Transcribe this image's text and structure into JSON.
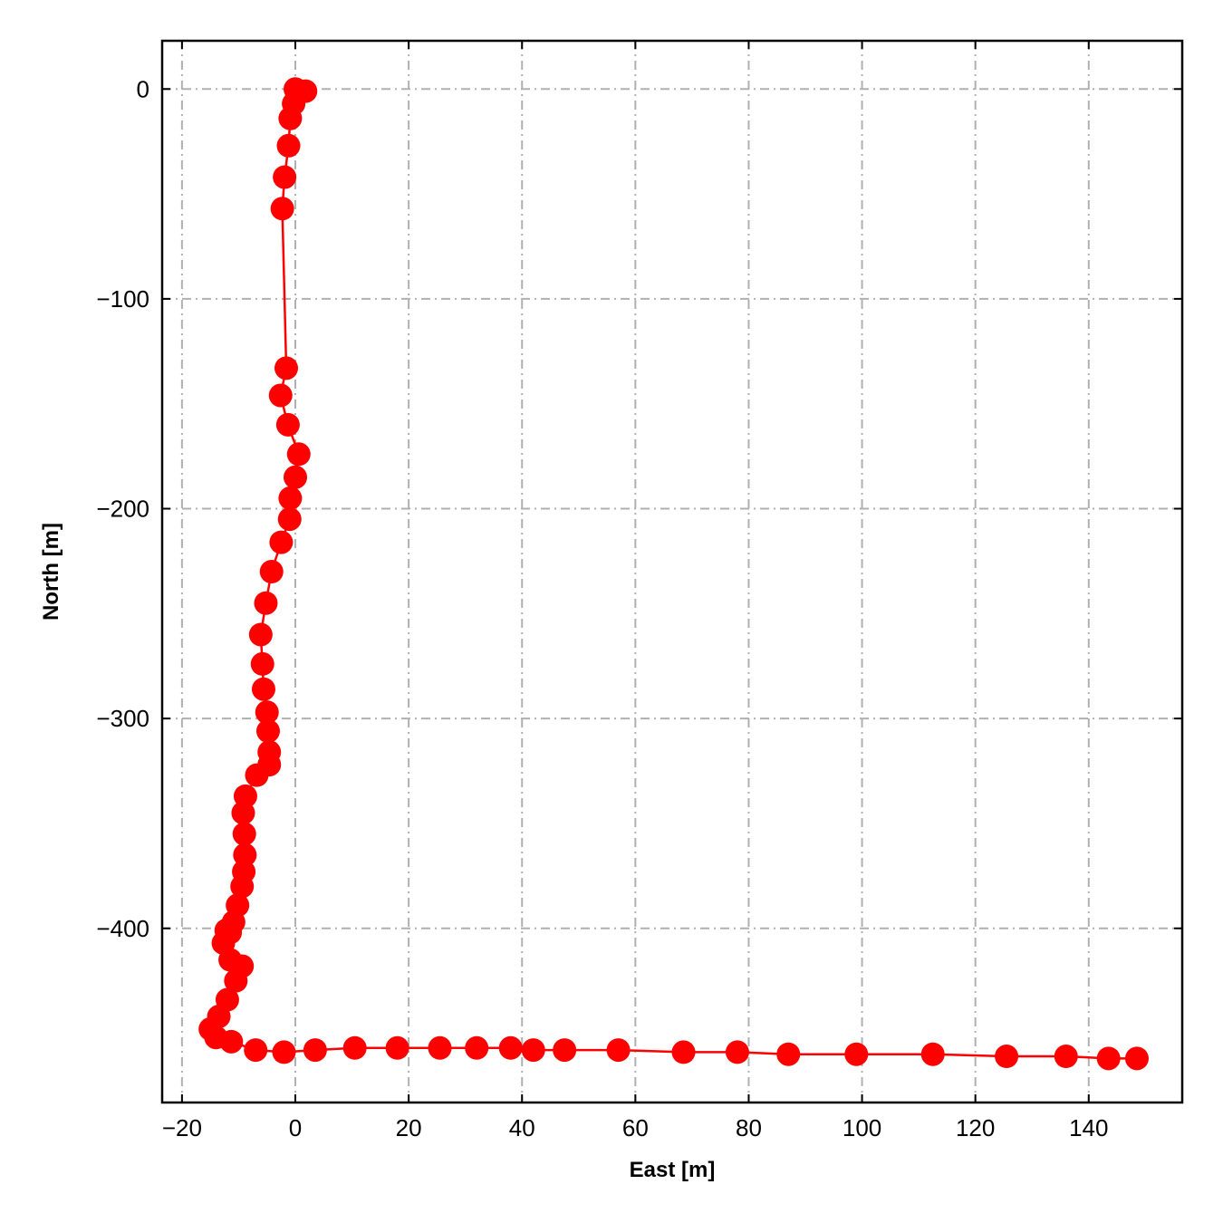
{
  "chart_data": {
    "type": "line",
    "title": "",
    "xlabel": "East [m]",
    "ylabel": "North [m]",
    "xlim": [
      -23.5,
      156.5
    ],
    "ylim": [
      -483,
      23
    ],
    "xticks": [
      -20,
      0,
      20,
      40,
      60,
      80,
      100,
      120,
      140
    ],
    "yticks": [
      -400,
      -300,
      -200,
      -100,
      0
    ],
    "xtick_labels": [
      "−20",
      "0",
      "20",
      "40",
      "60",
      "80",
      "100",
      "120",
      "140"
    ],
    "ytick_labels": [
      "−400",
      "−300",
      "−200",
      "−100",
      "0"
    ],
    "grid": true,
    "legend": "none",
    "series": [
      {
        "color": "#ff0000",
        "marker": "circle",
        "x": [
          0,
          1.8,
          0.6,
          -0.3,
          -0.9,
          -1.2,
          -1.9,
          -2.3,
          -1.6,
          -2.6,
          -1.3,
          0.6,
          0.0,
          -0.9,
          -1.0,
          -2.5,
          -4.2,
          -5.2,
          -6.1,
          -5.8,
          -5.6,
          -5.0,
          -4.8,
          -4.6,
          -4.6,
          -6.8,
          -8.8,
          -9.2,
          -9.0,
          -8.9,
          -9.1,
          -9.4,
          -10.2,
          -10.9,
          -11.5,
          -12.2,
          -12.7,
          -11.5,
          -9.4,
          -10.5,
          -12.0,
          -13.5,
          -15.0,
          -14.0,
          -11.3,
          -7.0,
          -2.0,
          3.5,
          10.5,
          18.0,
          25.5,
          32.0,
          38.0,
          42.0,
          47.5,
          57.0,
          68.5,
          78.0,
          87.0,
          99.0,
          112.5,
          125.5,
          136.0,
          143.5,
          148.5
        ],
        "y": [
          0,
          -1,
          -2,
          -7,
          -14,
          -27,
          -42,
          -57,
          -133,
          -146,
          -160,
          -174,
          -185,
          -195,
          -205,
          -216,
          -230,
          -245,
          -260,
          -274,
          -286,
          -297,
          -306,
          -316,
          -322,
          -327,
          -337,
          -345,
          -355,
          -365,
          -373,
          -380,
          -389,
          -397,
          -402,
          -401,
          -407,
          -415,
          -418,
          -425,
          -434,
          -442,
          -448,
          -452,
          -454,
          -458,
          -459,
          -458,
          -457,
          -457,
          -457,
          -457,
          -457,
          -458,
          -458,
          -458,
          -459,
          -459,
          -460,
          -460,
          -460,
          -461,
          -461,
          -462,
          -462
        ]
      }
    ]
  }
}
